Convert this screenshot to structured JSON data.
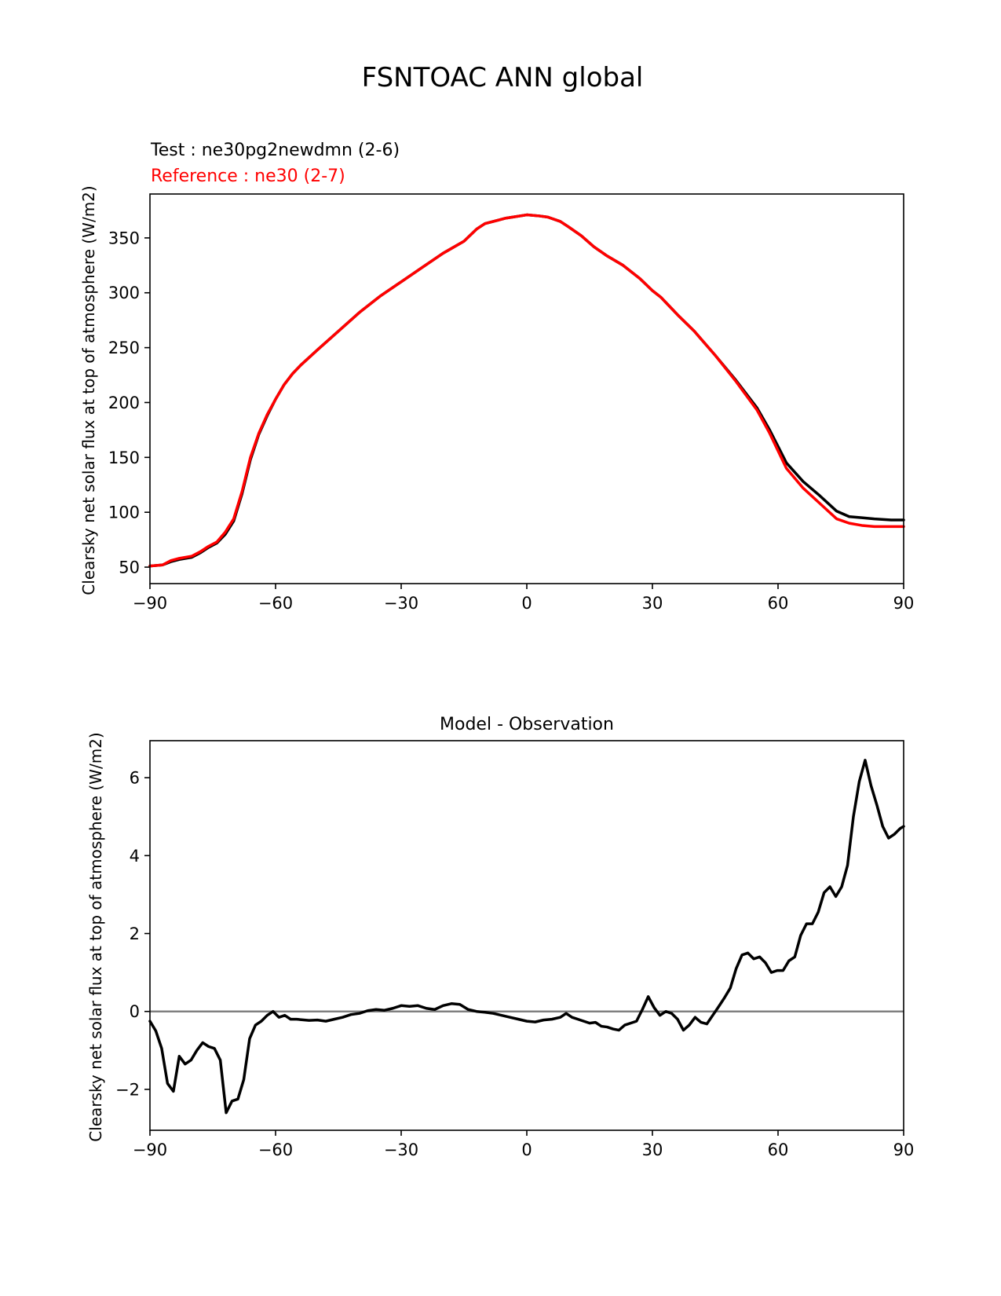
{
  "figure": {
    "suptitle": "FSNTOAC ANN global",
    "colors": {
      "test": "#000000",
      "reference": "#ff0000",
      "zero_line": "#808080",
      "axes": "#000000"
    }
  },
  "chart_data": [
    {
      "type": "line",
      "test_label": "Test : ne30pg2newdmn (2-6)",
      "reference_label": "Reference : ne30 (2-7)",
      "title": "",
      "xlabel": "",
      "ylabel": "Clearsky net solar flux at top of atmosphere (W/m2)",
      "xlim": [
        -90,
        90
      ],
      "ylim": [
        35,
        390
      ],
      "xticks": [
        -90,
        -60,
        -30,
        0,
        30,
        60,
        90
      ],
      "xtick_labels": [
        "−90",
        "−60",
        "−30",
        "0",
        "30",
        "60",
        "90"
      ],
      "yticks": [
        50,
        100,
        150,
        200,
        250,
        300,
        350
      ],
      "ytick_labels": [
        "50",
        "100",
        "150",
        "200",
        "250",
        "300",
        "350"
      ],
      "x": [
        -90,
        -87,
        -85,
        -83,
        -80,
        -78,
        -76,
        -74,
        -72,
        -70,
        -68,
        -66,
        -64,
        -62,
        -60,
        -58,
        -56,
        -54,
        -52,
        -50,
        -45,
        -40,
        -35,
        -30,
        -25,
        -20,
        -15,
        -12,
        -10,
        -5,
        0,
        3,
        5,
        8,
        10,
        13,
        16,
        19,
        23,
        27,
        30,
        32,
        34,
        36,
        40,
        45,
        50,
        55,
        58,
        60,
        62,
        66,
        70,
        74,
        77,
        80,
        83,
        87,
        90
      ],
      "series": [
        {
          "name": "Test : ne30pg2newdmn (2-6)",
          "color": "#000000",
          "values": [
            51,
            52,
            55,
            57,
            59,
            63,
            68,
            72,
            80,
            92,
            117,
            148,
            171,
            188,
            203,
            216,
            226,
            234,
            241,
            248,
            265,
            282,
            297,
            310,
            323,
            336,
            347,
            358,
            363,
            368,
            371,
            370,
            369,
            365,
            360,
            352,
            342,
            334,
            325,
            313,
            302,
            296,
            288,
            280,
            265,
            243,
            220,
            195,
            175,
            160,
            145,
            128,
            115,
            101,
            96,
            95,
            94,
            93,
            93
          ]
        },
        {
          "name": "Reference : ne30 (2-7)",
          "color": "#ff0000",
          "values": [
            51,
            52,
            56,
            58,
            60,
            64,
            69,
            73,
            82,
            94,
            119,
            150,
            172,
            189,
            203,
            216,
            226,
            234,
            241,
            248,
            265,
            282,
            297,
            310,
            323,
            336,
            347,
            358,
            363,
            368,
            371,
            370,
            369,
            365,
            360,
            352,
            342,
            334,
            325,
            313,
            302,
            296,
            288,
            280,
            265,
            243,
            219,
            193,
            172,
            156,
            140,
            122,
            108,
            94,
            90,
            88,
            87,
            87,
            87
          ]
        }
      ]
    },
    {
      "type": "line",
      "title": "Model - Observation",
      "xlabel": "",
      "ylabel": "Clearsky net solar flux at top of atmosphere (W/m2)",
      "xlim": [
        -90,
        90
      ],
      "ylim": [
        -3.05,
        6.95
      ],
      "xticks": [
        -90,
        -60,
        -30,
        0,
        30,
        60,
        90
      ],
      "xtick_labels": [
        "−90",
        "−60",
        "−30",
        "0",
        "30",
        "60",
        "90"
      ],
      "yticks": [
        -2,
        0,
        2,
        4,
        6
      ],
      "ytick_labels": [
        "−2",
        "0",
        "2",
        "4",
        "6"
      ],
      "zero_line": 0,
      "x": [
        -90,
        -88.6,
        -87.2,
        -85.8,
        -84.4,
        -83,
        -81.6,
        -80.2,
        -78.8,
        -77.4,
        -76,
        -74.6,
        -73.2,
        -71.8,
        -70.4,
        -69,
        -67.6,
        -66.2,
        -64.8,
        -63.4,
        -62,
        -60.6,
        -59.2,
        -57.8,
        -56.4,
        -55,
        -52,
        -50,
        -48,
        -46,
        -44,
        -42,
        -40,
        -38,
        -36,
        -34,
        -32,
        -30,
        -28,
        -26,
        -24,
        -22,
        -20,
        -18,
        -16,
        -14,
        -12,
        -10,
        -8,
        -6,
        -4,
        -2,
        0,
        2,
        4,
        6,
        8,
        9.4,
        10.8,
        12.2,
        13.6,
        15,
        16.4,
        17.8,
        19.2,
        20.6,
        22,
        23.4,
        24.8,
        26.2,
        27.6,
        29,
        30.4,
        31.8,
        33.2,
        34.6,
        36,
        37.4,
        38.8,
        40.2,
        41.6,
        43,
        44.4,
        45.8,
        47.2,
        48.6,
        50,
        51.4,
        52.8,
        54.2,
        55.6,
        57,
        58.4,
        59.8,
        61.2,
        62.6,
        64,
        65.4,
        66.8,
        68.2,
        69.6,
        71,
        72.4,
        73.8,
        75.2,
        76.6,
        78,
        79.4,
        80.8,
        82.2,
        83.6,
        85,
        86.4,
        87.8,
        89.2,
        90
      ],
      "series": [
        {
          "name": "Model - Observation",
          "color": "#000000",
          "values": [
            -0.25,
            -0.5,
            -0.95,
            -1.85,
            -2.05,
            -1.15,
            -1.35,
            -1.25,
            -1.0,
            -0.8,
            -0.9,
            -0.95,
            -1.25,
            -2.6,
            -2.3,
            -2.25,
            -1.75,
            -0.7,
            -0.35,
            -0.25,
            -0.1,
            0.0,
            -0.15,
            -0.1,
            -0.2,
            -0.2,
            -0.23,
            -0.22,
            -0.25,
            -0.2,
            -0.15,
            -0.08,
            -0.05,
            0.02,
            0.05,
            0.03,
            0.08,
            0.15,
            0.13,
            0.15,
            0.08,
            0.05,
            0.15,
            0.2,
            0.18,
            0.05,
            0.0,
            -0.02,
            -0.05,
            -0.1,
            -0.15,
            -0.2,
            -0.25,
            -0.27,
            -0.22,
            -0.2,
            -0.15,
            -0.05,
            -0.15,
            -0.2,
            -0.25,
            -0.3,
            -0.28,
            -0.38,
            -0.4,
            -0.45,
            -0.48,
            -0.35,
            -0.3,
            -0.25,
            0.05,
            0.38,
            0.1,
            -0.1,
            0.0,
            -0.05,
            -0.2,
            -0.48,
            -0.35,
            -0.15,
            -0.28,
            -0.32,
            -0.1,
            0.12,
            0.35,
            0.6,
            1.1,
            1.45,
            1.5,
            1.35,
            1.4,
            1.25,
            1.0,
            1.05,
            1.05,
            1.3,
            1.4,
            1.95,
            2.25,
            2.25,
            2.55,
            3.05,
            3.2,
            2.95,
            3.2,
            3.75,
            5.0,
            5.9,
            6.45,
            5.8,
            5.3,
            4.75,
            4.45,
            4.55,
            4.7,
            4.75
          ]
        }
      ]
    }
  ]
}
